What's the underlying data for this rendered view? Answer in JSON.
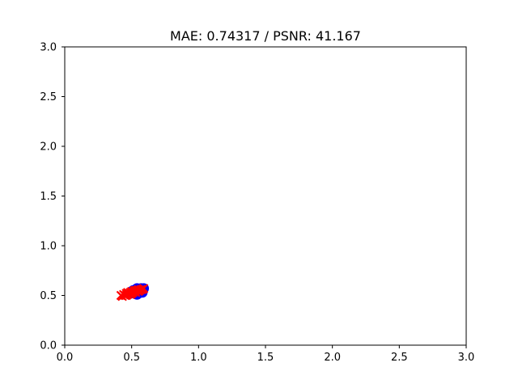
{
  "chart_data": {
    "type": "scatter",
    "title": "MAE: 0.74317 / PSNR: 41.167",
    "xlabel": "",
    "ylabel": "",
    "xlim": [
      0.0,
      3.0
    ],
    "ylim": [
      0.0,
      3.0
    ],
    "xticks": [
      "0.0",
      "0.5",
      "1.0",
      "1.5",
      "2.0",
      "2.5",
      "3.0"
    ],
    "yticks": [
      "0.0",
      "0.5",
      "1.0",
      "1.5",
      "2.0",
      "2.5",
      "3.0"
    ],
    "grid": false,
    "series": [
      {
        "marker": "circle",
        "color": "#0000ff",
        "points": [
          [
            0.5,
            0.53
          ],
          [
            0.52,
            0.52
          ],
          [
            0.53,
            0.54
          ],
          [
            0.54,
            0.51
          ],
          [
            0.55,
            0.55
          ],
          [
            0.56,
            0.56
          ],
          [
            0.57,
            0.57
          ],
          [
            0.58,
            0.56
          ],
          [
            0.55,
            0.52
          ],
          [
            0.53,
            0.56
          ],
          [
            0.57,
            0.54
          ],
          [
            0.59,
            0.57
          ],
          [
            0.51,
            0.55
          ],
          [
            0.54,
            0.57
          ],
          [
            0.58,
            0.53
          ]
        ]
      },
      {
        "marker": "x",
        "color": "#ff0000",
        "points": [
          [
            0.42,
            0.5
          ],
          [
            0.44,
            0.51
          ],
          [
            0.45,
            0.5
          ],
          [
            0.46,
            0.52
          ],
          [
            0.47,
            0.51
          ],
          [
            0.48,
            0.52
          ],
          [
            0.49,
            0.53
          ],
          [
            0.5,
            0.52
          ],
          [
            0.51,
            0.53
          ],
          [
            0.52,
            0.54
          ],
          [
            0.53,
            0.53
          ],
          [
            0.54,
            0.55
          ],
          [
            0.55,
            0.54
          ],
          [
            0.56,
            0.55
          ],
          [
            0.57,
            0.56
          ],
          [
            0.58,
            0.56
          ],
          [
            0.43,
            0.49
          ],
          [
            0.47,
            0.53
          ],
          [
            0.5,
            0.54
          ],
          [
            0.55,
            0.56
          ],
          [
            0.59,
            0.57
          ],
          [
            0.52,
            0.55
          ],
          [
            0.46,
            0.5
          ],
          [
            0.49,
            0.51
          ],
          [
            0.53,
            0.55
          ]
        ]
      }
    ]
  }
}
